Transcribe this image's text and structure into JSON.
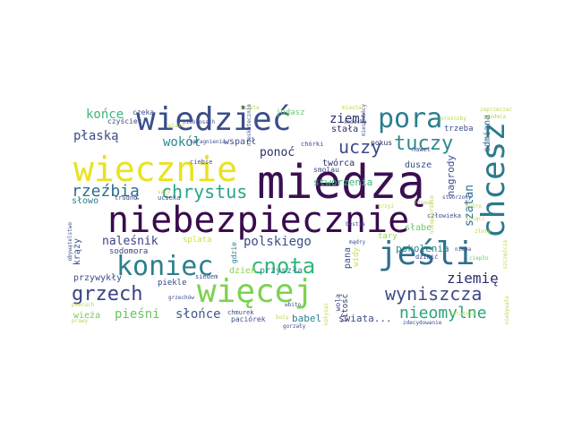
{
  "words": [
    {
      "text": "miedzą",
      "color": "#3b0f52"
    },
    {
      "text": "niebezpiecznie",
      "color": "#3a0b4d"
    },
    {
      "text": "wiecznie",
      "color": "#eae21f"
    },
    {
      "text": "wiedzieć",
      "color": "#3b4d8c"
    },
    {
      "text": "chcesz",
      "color": "#2a7a8e"
    },
    {
      "text": "jeśli",
      "color": "#2f6f8e"
    },
    {
      "text": "więcej",
      "color": "#7dd24f"
    },
    {
      "text": "koniec",
      "color": "#2c7f8e"
    },
    {
      "text": "cnota",
      "color": "#32b67a"
    },
    {
      "text": "pora",
      "color": "#2b7f8e"
    },
    {
      "text": "grzech",
      "color": "#3b4385"
    },
    {
      "text": "tuczy",
      "color": "#2c8a8c"
    },
    {
      "text": "chrystus",
      "color": "#27a68a"
    },
    {
      "text": "wyniszcza",
      "color": "#3f4a88"
    },
    {
      "text": "uczy",
      "color": "#3f4a88"
    },
    {
      "text": "nieomylne",
      "color": "#2ba37f"
    },
    {
      "text": "rzeźbią",
      "color": "#2f6f8e"
    },
    {
      "text": "ziemię",
      "color": "#2b2f6b"
    },
    {
      "text": "pieśni",
      "color": "#65c85b"
    },
    {
      "text": "polskiego",
      "color": "#3a4e8b"
    },
    {
      "text": "słońce",
      "color": "#3f5a8d"
    },
    {
      "text": "końce",
      "color": "#3fb57a"
    },
    {
      "text": "płaską",
      "color": "#3d4a88"
    },
    {
      "text": "wokół",
      "color": "#2c8a8c"
    },
    {
      "text": "ziemi",
      "color": "#2b2f6b"
    },
    {
      "text": "ponoć",
      "color": "#2b2f6b"
    },
    {
      "text": "naleśnik",
      "color": "#3b4385"
    },
    {
      "text": "szatan",
      "color": "#2b6e8e"
    },
    {
      "text": "odmiana",
      "color": "#3b6b8e"
    },
    {
      "text": "nagrody",
      "color": "#3b4d8c"
    },
    {
      "text": "stworzenia",
      "color": "#3bb37b"
    },
    {
      "text": "pokolenia",
      "color": "#2c8a8c"
    },
    {
      "text": "przywykły",
      "color": "#3b4d8c"
    },
    {
      "text": "świata...",
      "color": "#3b4d8c"
    },
    {
      "text": "babel",
      "color": "#2c7f8e"
    },
    {
      "text": "stała",
      "color": "#2b2f6b"
    },
    {
      "text": "twórca",
      "color": "#2b2f6b"
    },
    {
      "text": "dusze",
      "color": "#3b4d8c"
    },
    {
      "text": "słowo",
      "color": "#2c7f8e"
    },
    {
      "text": "wieża",
      "color": "#7cc85a"
    },
    {
      "text": "wsparł",
      "color": "#3b4d8c"
    },
    {
      "text": "krąży",
      "color": "#3b4d8c"
    },
    {
      "text": "sodomora",
      "color": "#3b4385"
    },
    {
      "text": "piekle",
      "color": "#3b4385"
    },
    {
      "text": "dzień",
      "color": "#8fd15a"
    },
    {
      "text": "przyszła",
      "color": "#2c8a8c"
    },
    {
      "text": "pana",
      "color": "#3b4d8c"
    },
    {
      "text": "widy",
      "color": "#cfe03a"
    },
    {
      "text": "litość",
      "color": "#2b2f6b"
    },
    {
      "text": "wolą",
      "color": "#3b4d8c"
    },
    {
      "text": "słabe",
      "color": "#6cc86a"
    },
    {
      "text": "tary",
      "color": "#9ad35a"
    },
    {
      "text": "splata",
      "color": "#cfe03a"
    },
    {
      "text": "czeka",
      "color": "#3b4d8c"
    },
    {
      "text": "judasz",
      "color": "#6cc86a"
    },
    {
      "text": "trzeba",
      "color": "#3b4d8c"
    },
    {
      "text": "człowieka",
      "color": "#3b4d8c"
    },
    {
      "text": "ciebie",
      "color": "#3b4d8c"
    },
    {
      "text": "smolau",
      "color": "#3b4d8c"
    },
    {
      "text": "pokus",
      "color": "#2b2f6b"
    },
    {
      "text": "nawet",
      "color": "#3b4d8c"
    },
    {
      "text": "gdzie",
      "color": "#2c7f8e"
    },
    {
      "text": "czyściec",
      "color": "#3b4d8c"
    },
    {
      "text": "trudno",
      "color": "#3b4d8c"
    },
    {
      "text": "ucieka",
      "color": "#3b4d8c"
    },
    {
      "text": "siedem",
      "color": "#3b4d8c"
    },
    {
      "text": "chmurek",
      "color": "#3b4d8c"
    },
    {
      "text": "paciórek",
      "color": "#3b4d8c"
    },
    {
      "text": "dziwić",
      "color": "#3b4d8c"
    },
    {
      "text": "chórki",
      "color": "#3b4d8c"
    },
    {
      "text": "niebiosach",
      "color": "#3b4d8c"
    },
    {
      "text": "świata",
      "color": "#bcd84a"
    },
    {
      "text": "miasta",
      "color": "#bcd84a"
    },
    {
      "text": "śniechu",
      "color": "#3b4d8c"
    },
    {
      "text": "zaprzeczać",
      "color": "#bcd84a"
    },
    {
      "text": "siedmia",
      "color": "#bcd84a"
    },
    {
      "text": "nieba",
      "color": "#3b4d8c"
    },
    {
      "text": "mieszkańcy",
      "color": "#3b4d8c"
    },
    {
      "text": "nieopierdzie",
      "color": "#bcd84a"
    },
    {
      "text": "grzechów",
      "color": "#3b4d8c"
    },
    {
      "text": "spragnienia",
      "color": "#3b4d8c"
    },
    {
      "text": "prośniby",
      "color": "#bcd84a"
    },
    {
      "text": "bestia",
      "color": "#3b4d8c"
    },
    {
      "text": "ostatnia",
      "color": "#bcd84a"
    },
    {
      "text": "zdecydowanie",
      "color": "#3b4d8c"
    },
    {
      "text": "niebywałe",
      "color": "#bcd84a"
    },
    {
      "text": "szczęścia",
      "color": "#bcd84a"
    },
    {
      "text": "nieskutecznie",
      "color": "#3b4d8c"
    },
    {
      "text": "ciepło",
      "color": "#6cc86a"
    },
    {
      "text": "wbito",
      "color": "#3b4d8c"
    },
    {
      "text": "boży",
      "color": "#bcd84a"
    },
    {
      "text": "ścięci",
      "color": "#bcd84a"
    },
    {
      "text": "zdrowe",
      "color": "#bcd84a"
    },
    {
      "text": "piecuch",
      "color": "#bcd84a"
    },
    {
      "text": "gorzały",
      "color": "#3b4d8c"
    },
    {
      "text": "obywatelstwo",
      "color": "#3b4d8c"
    },
    {
      "text": "złoty",
      "color": "#bcd84a"
    },
    {
      "text": "dobro",
      "color": "#bcd84a"
    },
    {
      "text": "krzyż",
      "color": "#bcd84a"
    },
    {
      "text": "prawy",
      "color": "#bcd84a"
    },
    {
      "text": "wiatr",
      "color": "#bcd84a"
    },
    {
      "text": "sącz",
      "color": "#bcd84a"
    },
    {
      "text": "mądry",
      "color": "#3b4d8c"
    },
    {
      "text": "stworzony",
      "color": "#3b4d8c"
    },
    {
      "text": "kołysać",
      "color": "#bcd84a"
    }
  ]
}
